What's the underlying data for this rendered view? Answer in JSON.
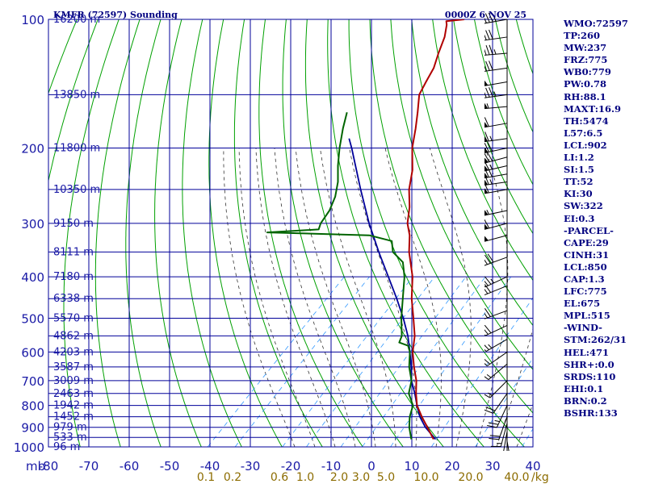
{
  "header": {
    "station": "KMFR (72597) Sounding",
    "time": "0000Z  6 NOV 25"
  },
  "indices": [
    "WMO:72597",
    "TP:260",
    "MW:237",
    "FRZ:775",
    "WB0:779",
    "PW:0.78",
    "RH:88.1",
    "MAXT:16.9",
    "TH:5474",
    "L57:6.5",
    "LCL:902",
    "LI:1.2",
    "SI:1.5",
    "TT:52",
    "KI:30",
    "SW:322",
    "EI:0.3",
    "-PARCEL-",
    "CAPE:29",
    "CINH:31",
    "LCL:850",
    "CAP:1.3",
    "LFC:775",
    "EL:675",
    "MPL:515",
    "-WIND-",
    "STM:262/31",
    "HEL:471",
    "SHR+:0.0",
    "SRDS:110",
    "EHI:0.1",
    "BRN:0.2",
    "BSHR:133"
  ],
  "colors": {
    "isobar": "#000099",
    "isotherm": "#000099",
    "dry_adiabat": "#00a000",
    "moist_adiabat": "#333333",
    "mixing_ratio": "#3399ff",
    "temperature": "#b00000",
    "dewpoint": "#006400",
    "parcel": "#000099",
    "barb": "#000000"
  },
  "chart_data": {
    "type": "skew-t",
    "pressure_axis": {
      "label": "mb",
      "ticks": [
        100,
        200,
        300,
        400,
        500,
        600,
        700,
        800,
        900,
        1000
      ],
      "range": [
        1000,
        100
      ]
    },
    "temperature_axis": {
      "ticks": [
        -80,
        -70,
        -60,
        -50,
        -40,
        -30,
        -20,
        -10,
        0,
        10,
        20,
        30,
        40
      ],
      "labels": [
        "-80",
        "-70",
        "-60",
        "-50",
        "-40",
        "-30",
        "-20",
        "-10",
        "0",
        "10",
        "20",
        "30",
        "40"
      ]
    },
    "height_labels": [
      {
        "p": 100,
        "h": "16200 m"
      },
      {
        "p": 150,
        "h": "13850 m"
      },
      {
        "p": 200,
        "h": "11800 m"
      },
      {
        "p": 250,
        "h": "10350 m"
      },
      {
        "p": 300,
        "h": "9150 m"
      },
      {
        "p": 350,
        "h": "8111 m"
      },
      {
        "p": 400,
        "h": "7180 m"
      },
      {
        "p": 450,
        "h": "6338 m"
      },
      {
        "p": 500,
        "h": "5570 m"
      },
      {
        "p": 550,
        "h": "4862 m"
      },
      {
        "p": 600,
        "h": "4203 m"
      },
      {
        "p": 650,
        "h": "3587 m"
      },
      {
        "p": 700,
        "h": "3009 m"
      },
      {
        "p": 750,
        "h": "2463 m"
      },
      {
        "p": 800,
        "h": "1942 m"
      },
      {
        "p": 850,
        "h": "1452 m"
      },
      {
        "p": 900,
        "h": "979 m"
      },
      {
        "p": 950,
        "h": "533 m"
      },
      {
        "p": 1000,
        "h": "96 m"
      }
    ],
    "mixing_ratio_labels": [
      "0.1",
      "0.2",
      "0.6",
      "1.0",
      "2.0",
      "3.0",
      "5.0",
      "10.0",
      "20.0",
      "40.0"
    ],
    "mixing_ratio_unit": "g/kg",
    "temperature": [
      {
        "p": 960,
        "t": 12.5
      },
      {
        "p": 900,
        "t": 8.0
      },
      {
        "p": 850,
        "t": 4.0
      },
      {
        "p": 800,
        "t": 0.0
      },
      {
        "p": 750,
        "t": -3.2
      },
      {
        "p": 700,
        "t": -6.3
      },
      {
        "p": 650,
        "t": -10.3
      },
      {
        "p": 600,
        "t": -14.3
      },
      {
        "p": 550,
        "t": -17.8
      },
      {
        "p": 500,
        "t": -22.5
      },
      {
        "p": 450,
        "t": -27.8
      },
      {
        "p": 400,
        "t": -33.0
      },
      {
        "p": 350,
        "t": -40.0
      },
      {
        "p": 320,
        "t": -44.0
      },
      {
        "p": 300,
        "t": -47.5
      },
      {
        "p": 275,
        "t": -51.0
      },
      {
        "p": 250,
        "t": -55.5
      },
      {
        "p": 225,
        "t": -59.5
      },
      {
        "p": 200,
        "t": -65.0
      },
      {
        "p": 180,
        "t": -69.0
      },
      {
        "p": 165,
        "t": -72.5
      },
      {
        "p": 150,
        "t": -76.5
      },
      {
        "p": 140,
        "t": -78.0
      },
      {
        "p": 130,
        "t": -79.5
      },
      {
        "p": 120,
        "t": -82.0
      },
      {
        "p": 110,
        "t": -84.5
      },
      {
        "p": 103,
        "t": -87.0
      },
      {
        "p": 101,
        "t": -88.0
      },
      {
        "p": 100,
        "t": -84.0
      }
    ],
    "dewpoint": [
      {
        "p": 960,
        "t": 7.0
      },
      {
        "p": 900,
        "t": 3.5
      },
      {
        "p": 850,
        "t": 1.0
      },
      {
        "p": 800,
        "t": -1.0
      },
      {
        "p": 750,
        "t": -5.0
      },
      {
        "p": 700,
        "t": -7.5
      },
      {
        "p": 650,
        "t": -11.5
      },
      {
        "p": 600,
        "t": -15.0
      },
      {
        "p": 580,
        "t": -17.0
      },
      {
        "p": 570,
        "t": -20.0
      },
      {
        "p": 550,
        "t": -21.0
      },
      {
        "p": 500,
        "t": -25.5
      },
      {
        "p": 450,
        "t": -30.0
      },
      {
        "p": 400,
        "t": -35.0
      },
      {
        "p": 370,
        "t": -39.0
      },
      {
        "p": 350,
        "t": -44.0
      },
      {
        "p": 330,
        "t": -47.0
      },
      {
        "p": 320,
        "t": -54.0
      },
      {
        "p": 315,
        "t": -80.0
      },
      {
        "p": 310,
        "t": -68.0
      },
      {
        "p": 300,
        "t": -69.0
      },
      {
        "p": 280,
        "t": -70.0
      },
      {
        "p": 260,
        "t": -72.0
      },
      {
        "p": 240,
        "t": -75.0
      },
      {
        "p": 220,
        "t": -79.0
      },
      {
        "p": 200,
        "t": -83.0
      },
      {
        "p": 180,
        "t": -87.0
      },
      {
        "p": 165,
        "t": -90.0
      }
    ],
    "parcel": [
      {
        "p": 960,
        "t": 13.0
      },
      {
        "p": 900,
        "t": 7.5
      },
      {
        "p": 850,
        "t": 3.5
      },
      {
        "p": 800,
        "t": 0.0
      },
      {
        "p": 750,
        "t": -3.5
      },
      {
        "p": 700,
        "t": -7.5
      },
      {
        "p": 650,
        "t": -11.0
      },
      {
        "p": 600,
        "t": -15.0
      },
      {
        "p": 550,
        "t": -19.5
      },
      {
        "p": 500,
        "t": -25.0
      },
      {
        "p": 450,
        "t": -31.5
      },
      {
        "p": 400,
        "t": -39.0
      },
      {
        "p": 350,
        "t": -47.5
      },
      {
        "p": 300,
        "t": -57.0
      },
      {
        "p": 250,
        "t": -67.5
      },
      {
        "p": 200,
        "t": -80.0
      },
      {
        "p": 190,
        "t": -83.0
      }
    ],
    "winds": [
      {
        "p": 100,
        "dir": 260,
        "spd": 45
      },
      {
        "p": 110,
        "dir": 262,
        "spd": 40
      },
      {
        "p": 120,
        "dir": 265,
        "spd": 45
      },
      {
        "p": 130,
        "dir": 262,
        "spd": 40
      },
      {
        "p": 140,
        "dir": 260,
        "spd": 50
      },
      {
        "p": 150,
        "dir": 262,
        "spd": 45
      },
      {
        "p": 160,
        "dir": 265,
        "spd": 55
      },
      {
        "p": 175,
        "dir": 260,
        "spd": 60
      },
      {
        "p": 190,
        "dir": 262,
        "spd": 65
      },
      {
        "p": 200,
        "dir": 258,
        "spd": 70
      },
      {
        "p": 210,
        "dir": 255,
        "spd": 70
      },
      {
        "p": 220,
        "dir": 257,
        "spd": 65
      },
      {
        "p": 230,
        "dir": 260,
        "spd": 70
      },
      {
        "p": 240,
        "dir": 262,
        "spd": 65
      },
      {
        "p": 250,
        "dir": 260,
        "spd": 60
      },
      {
        "p": 280,
        "dir": 258,
        "spd": 55
      },
      {
        "p": 300,
        "dir": 255,
        "spd": 60
      },
      {
        "p": 320,
        "dir": 255,
        "spd": 50
      },
      {
        "p": 360,
        "dir": 250,
        "spd": 40
      },
      {
        "p": 400,
        "dir": 245,
        "spd": 35
      },
      {
        "p": 420,
        "dir": 248,
        "spd": 30
      },
      {
        "p": 480,
        "dir": 250,
        "spd": 30
      },
      {
        "p": 520,
        "dir": 245,
        "spd": 30
      },
      {
        "p": 560,
        "dir": 240,
        "spd": 25
      },
      {
        "p": 600,
        "dir": 235,
        "spd": 20
      },
      {
        "p": 640,
        "dir": 230,
        "spd": 15
      },
      {
        "p": 700,
        "dir": 225,
        "spd": 15
      },
      {
        "p": 750,
        "dir": 215,
        "spd": 20
      },
      {
        "p": 800,
        "dir": 205,
        "spd": 25
      },
      {
        "p": 850,
        "dir": 200,
        "spd": 20
      },
      {
        "p": 880,
        "dir": 195,
        "spd": 15
      },
      {
        "p": 920,
        "dir": 190,
        "spd": 10
      },
      {
        "p": 950,
        "dir": 180,
        "spd": 10
      },
      {
        "p": 970,
        "dir": 170,
        "spd": 10
      }
    ]
  }
}
